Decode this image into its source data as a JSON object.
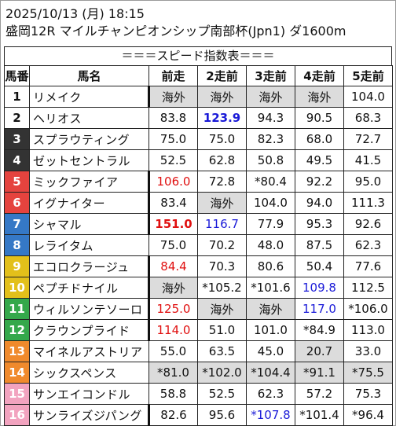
{
  "header": {
    "datetime": "2025/10/13 (月) 18:15",
    "race": "盛岡12R マイルチャンピオンシップ南部杯(Jpn1) ダ1600m"
  },
  "subtitle": "＝＝＝スピード指数表＝＝＝",
  "columns": [
    "馬番",
    "馬名",
    "前走",
    "2走前",
    "3走前",
    "4走前",
    "5走前"
  ],
  "colors": {
    "num_bg": [
      "#ffffff",
      "#ffffff",
      "#333333",
      "#333333",
      "#e5433e",
      "#e5433e",
      "#3578c6",
      "#3578c6",
      "#e3c01a",
      "#e3c01a",
      "#34a84b",
      "#34a84b",
      "#f08a2c",
      "#f08a2c",
      "#f2a3bf",
      "#f2a3bf"
    ],
    "num_fg": [
      "#111111",
      "#111111",
      "#ffffff",
      "#ffffff",
      "#ffffff",
      "#ffffff",
      "#ffffff",
      "#ffffff",
      "#ffffff",
      "#ffffff",
      "#ffffff",
      "#ffffff",
      "#ffffff",
      "#ffffff",
      "#ffffff",
      "#ffffff"
    ],
    "red": "#e01010",
    "blue": "#1a1ad8",
    "gray_cell": "#dcdcdc"
  },
  "rows": [
    {
      "num": "1",
      "name": "リメイク",
      "thick": true,
      "cells": [
        {
          "v": "海外",
          "g": true
        },
        {
          "v": "海外",
          "g": true
        },
        {
          "v": "海外",
          "g": true
        },
        {
          "v": "海外",
          "g": true
        },
        {
          "v": "104.0"
        }
      ]
    },
    {
      "num": "2",
      "name": "ヘリオス",
      "thick": false,
      "cells": [
        {
          "v": "83.8"
        },
        {
          "v": "123.9",
          "c": "blue",
          "b": true
        },
        {
          "v": "94.3"
        },
        {
          "v": "90.5"
        },
        {
          "v": "68.3"
        }
      ]
    },
    {
      "num": "3",
      "name": "スプラウティング",
      "thick": false,
      "cells": [
        {
          "v": "75.0"
        },
        {
          "v": "75.0"
        },
        {
          "v": "82.3"
        },
        {
          "v": "68.0"
        },
        {
          "v": "72.7"
        }
      ]
    },
    {
      "num": "4",
      "name": "ゼットセントラル",
      "thick": false,
      "cells": [
        {
          "v": "52.5"
        },
        {
          "v": "62.8"
        },
        {
          "v": "50.8"
        },
        {
          "v": "49.5"
        },
        {
          "v": "41.5"
        }
      ]
    },
    {
      "num": "5",
      "name": "ミックファイア",
      "thick": true,
      "cells": [
        {
          "v": "106.0",
          "c": "red"
        },
        {
          "v": "72.8"
        },
        {
          "v": "*80.4"
        },
        {
          "v": "92.2"
        },
        {
          "v": "95.0"
        }
      ]
    },
    {
      "num": "6",
      "name": "イグナイター",
      "thick": true,
      "cells": [
        {
          "v": "83.4"
        },
        {
          "v": "海外",
          "g": true
        },
        {
          "v": "104.0"
        },
        {
          "v": "94.0"
        },
        {
          "v": "111.3"
        }
      ]
    },
    {
      "num": "7",
      "name": "シャマル",
      "thick": true,
      "cells": [
        {
          "v": "151.0",
          "c": "red",
          "b": true
        },
        {
          "v": "116.7",
          "c": "blue"
        },
        {
          "v": "77.9"
        },
        {
          "v": "95.3"
        },
        {
          "v": "92.6"
        }
      ]
    },
    {
      "num": "8",
      "name": "レライタム",
      "thick": false,
      "cells": [
        {
          "v": "75.0"
        },
        {
          "v": "70.2"
        },
        {
          "v": "48.0"
        },
        {
          "v": "87.5"
        },
        {
          "v": "62.3"
        }
      ]
    },
    {
      "num": "9",
      "name": "エコロクラージュ",
      "thick": true,
      "cells": [
        {
          "v": "84.4",
          "c": "red"
        },
        {
          "v": "70.3"
        },
        {
          "v": "80.6"
        },
        {
          "v": "50.4"
        },
        {
          "v": "77.6"
        }
      ]
    },
    {
      "num": "10",
      "name": "ペプチドナイル",
      "thick": true,
      "cells": [
        {
          "v": "海外",
          "g": true
        },
        {
          "v": "*105.2"
        },
        {
          "v": "*101.6"
        },
        {
          "v": "109.8",
          "c": "blue"
        },
        {
          "v": "112.5"
        }
      ]
    },
    {
      "num": "11",
      "name": "ウィルソンテソーロ",
      "thick": true,
      "cells": [
        {
          "v": "125.0",
          "c": "red"
        },
        {
          "v": "海外",
          "g": true
        },
        {
          "v": "海外",
          "g": true
        },
        {
          "v": "117.0",
          "c": "blue"
        },
        {
          "v": "*106.0"
        }
      ]
    },
    {
      "num": "12",
      "name": "クラウンプライド",
      "thick": true,
      "cells": [
        {
          "v": "114.0",
          "c": "red"
        },
        {
          "v": "51.0"
        },
        {
          "v": "101.0"
        },
        {
          "v": "*84.9"
        },
        {
          "v": "113.0"
        }
      ]
    },
    {
      "num": "13",
      "name": "マイネルアストリア",
      "thick": false,
      "cells": [
        {
          "v": "55.0"
        },
        {
          "v": "63.5"
        },
        {
          "v": "45.0"
        },
        {
          "v": "20.7",
          "g": true
        },
        {
          "v": "33.0"
        }
      ]
    },
    {
      "num": "14",
      "name": "シックスペンス",
      "thick": false,
      "cells": [
        {
          "v": "*81.0",
          "g": true
        },
        {
          "v": "*102.0",
          "g": true
        },
        {
          "v": "*104.4",
          "g": true
        },
        {
          "v": "*91.1",
          "g": true
        },
        {
          "v": "*75.5",
          "g": true
        }
      ]
    },
    {
      "num": "15",
      "name": "サンエイコンドル",
      "thick": false,
      "cells": [
        {
          "v": "58.8"
        },
        {
          "v": "52.5"
        },
        {
          "v": "62.3"
        },
        {
          "v": "57.2"
        },
        {
          "v": "75.3"
        }
      ]
    },
    {
      "num": "16",
      "name": "サンライズジパング",
      "thick": true,
      "cells": [
        {
          "v": "82.6"
        },
        {
          "v": "95.6"
        },
        {
          "v": "*107.8",
          "c": "blue"
        },
        {
          "v": "*101.4"
        },
        {
          "v": "*96.4"
        }
      ]
    }
  ]
}
